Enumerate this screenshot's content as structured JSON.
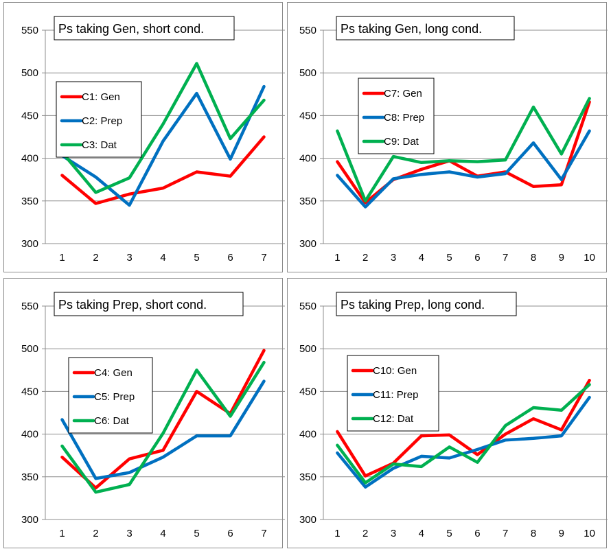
{
  "chart_data": [
    {
      "type": "line",
      "title": "Ps taking Gen, short cond.",
      "categories": [
        "1",
        "2",
        "3",
        "4",
        "5",
        "6",
        "7"
      ],
      "ylim": [
        300,
        550
      ],
      "yticks": [
        "300",
        "350",
        "400",
        "450",
        "500",
        "550"
      ],
      "grid": true,
      "legend_position": "middle-left",
      "series": [
        {
          "name": "C1: Gen",
          "color": "#ff0000",
          "values": [
            380,
            347,
            358,
            365,
            384,
            379,
            425
          ]
        },
        {
          "name": "C2: Prep",
          "color": "#0070c0",
          "values": [
            403,
            378,
            345,
            420,
            476,
            399,
            484
          ]
        },
        {
          "name": "C3: Dat",
          "color": "#00b050",
          "values": [
            407,
            360,
            377,
            440,
            511,
            423,
            468
          ]
        }
      ]
    },
    {
      "type": "line",
      "title": "Ps taking Gen, long cond.",
      "categories": [
        "1",
        "2",
        "3",
        "4",
        "5",
        "6",
        "7",
        "8",
        "9",
        "10"
      ],
      "ylim": [
        300,
        550
      ],
      "yticks": [
        "300",
        "350",
        "400",
        "450",
        "500",
        "550"
      ],
      "grid": true,
      "legend_position": "middle-left",
      "series": [
        {
          "name": "C7: Gen",
          "color": "#ff0000",
          "values": [
            396,
            348,
            375,
            387,
            397,
            379,
            384,
            367,
            369,
            466
          ]
        },
        {
          "name": "C8: Prep",
          "color": "#0070c0",
          "values": [
            380,
            343,
            376,
            381,
            384,
            378,
            382,
            418,
            375,
            432
          ]
        },
        {
          "name": "C9: Dat",
          "color": "#00b050",
          "values": [
            432,
            350,
            402,
            395,
            397,
            396,
            398,
            460,
            405,
            470
          ]
        }
      ]
    },
    {
      "type": "line",
      "title": "Ps taking Prep, short cond.",
      "categories": [
        "1",
        "2",
        "3",
        "4",
        "5",
        "6",
        "7"
      ],
      "ylim": [
        300,
        550
      ],
      "yticks": [
        "300",
        "350",
        "400",
        "450",
        "500",
        "550"
      ],
      "grid": true,
      "legend_position": "middle-left",
      "series": [
        {
          "name": "C4: Gen",
          "color": "#ff0000",
          "values": [
            373,
            337,
            371,
            381,
            450,
            424,
            498
          ]
        },
        {
          "name": "C5: Prep",
          "color": "#0070c0",
          "values": [
            417,
            348,
            355,
            373,
            398,
            398,
            462
          ]
        },
        {
          "name": "C6: Dat",
          "color": "#00b050",
          "values": [
            386,
            332,
            341,
            401,
            475,
            421,
            484
          ]
        }
      ]
    },
    {
      "type": "line",
      "title": "Ps taking Prep, long cond.",
      "categories": [
        "1",
        "2",
        "3",
        "4",
        "5",
        "6",
        "7",
        "8",
        "9",
        "10"
      ],
      "ylim": [
        300,
        550
      ],
      "yticks": [
        "300",
        "350",
        "400",
        "450",
        "500",
        "550"
      ],
      "grid": true,
      "legend_position": "middle-left",
      "series": [
        {
          "name": "C10: Gen",
          "color": "#ff0000",
          "values": [
            403,
            351,
            366,
            398,
            399,
            376,
            400,
            418,
            405,
            463
          ]
        },
        {
          "name": "C11: Prep",
          "color": "#0070c0",
          "values": [
            378,
            338,
            360,
            374,
            372,
            382,
            393,
            395,
            398,
            443
          ]
        },
        {
          "name": "C12: Dat",
          "color": "#00b050",
          "values": [
            387,
            343,
            365,
            362,
            385,
            367,
            410,
            431,
            428,
            458
          ]
        }
      ]
    }
  ]
}
